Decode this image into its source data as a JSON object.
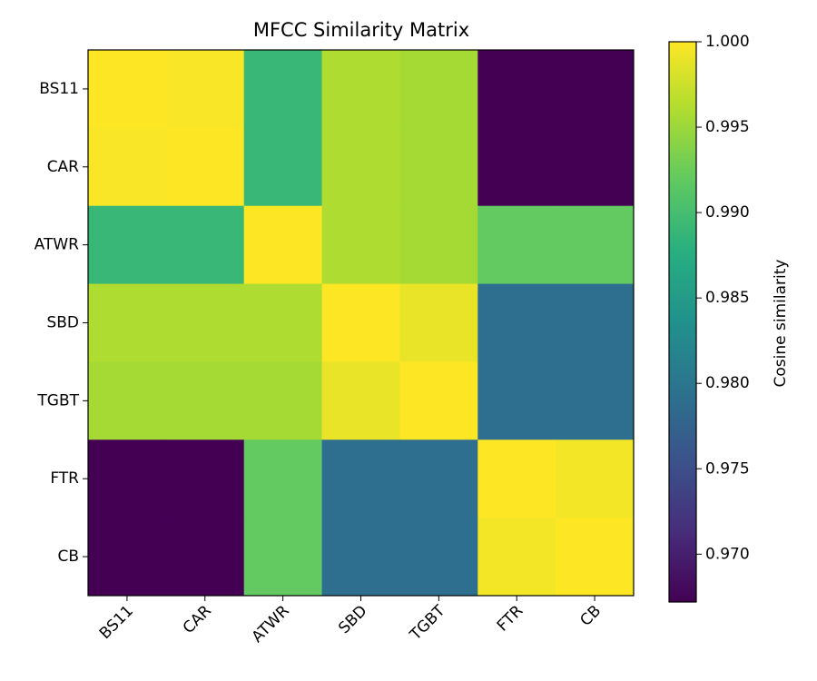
{
  "chart_data": {
    "type": "heatmap",
    "title": "MFCC Similarity Matrix",
    "x_categories": [
      "BS11",
      "CAR",
      "ATWR",
      "SBD",
      "TGBT",
      "FTR",
      "CB"
    ],
    "y_categories": [
      "BS11",
      "CAR",
      "ATWR",
      "SBD",
      "TGBT",
      "FTR",
      "CB"
    ],
    "values": [
      [
        1.0,
        0.9998,
        0.989,
        0.996,
        0.9955,
        0.9672,
        0.9672
      ],
      [
        0.9998,
        1.0,
        0.989,
        0.996,
        0.9955,
        0.9672,
        0.9672
      ],
      [
        0.989,
        0.989,
        1.0,
        0.996,
        0.9955,
        0.992,
        0.992
      ],
      [
        0.996,
        0.996,
        0.996,
        1.0,
        0.999,
        0.979,
        0.979
      ],
      [
        0.9955,
        0.9955,
        0.9955,
        0.999,
        1.0,
        0.979,
        0.979
      ],
      [
        0.9672,
        0.9672,
        0.992,
        0.979,
        0.979,
        1.0,
        0.9995
      ],
      [
        0.9672,
        0.9672,
        0.992,
        0.979,
        0.979,
        0.9995,
        1.0
      ]
    ],
    "colormap": "viridis",
    "colorbar_label": "Cosine similarity",
    "zlim": [
      0.9672,
      1.0
    ],
    "zticks": [
      {
        "value": 0.97,
        "label": "0.970"
      },
      0.975,
      {
        "value": 0.98,
        "label": "0.980"
      },
      0.985,
      {
        "value": 0.99,
        "label": "0.990"
      },
      0.995,
      {
        "value": 1.0,
        "label": "1.000"
      }
    ]
  }
}
